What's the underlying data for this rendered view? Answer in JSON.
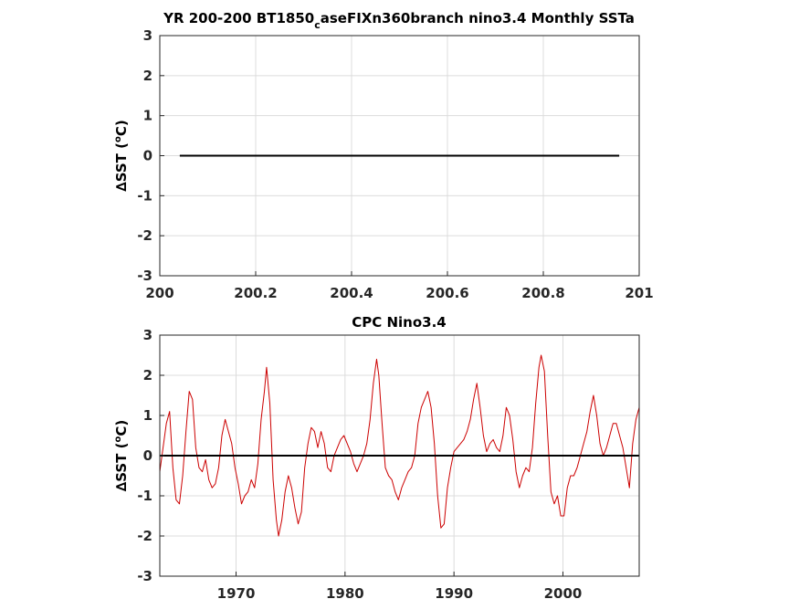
{
  "chart_data": [
    {
      "type": "line",
      "title_main": "YR 200-200 BT1850",
      "title_sub": "c",
      "title_rest": "aseFIXn360branch nino3.4 Monthly SSTa",
      "ylabel_delta": "∆",
      "ylabel_text": "SST (",
      "ylabel_deg": "o",
      "ylabel_unit": "C)",
      "xlim": [
        200,
        201
      ],
      "ylim": [
        -3,
        3
      ],
      "xticks": [
        "200",
        "200.2",
        "200.4",
        "200.6",
        "200.8",
        "201"
      ],
      "yticks": [
        "3",
        "2",
        "1",
        "0",
        "-1",
        "-2",
        "-3"
      ],
      "grid": true,
      "series": [
        {
          "color": "#000000",
          "x": [
            200.0417,
            200.9583
          ],
          "y": [
            0,
            0
          ]
        }
      ]
    },
    {
      "type": "line",
      "title": "CPC Nino3.4",
      "ylabel_delta": "∆",
      "ylabel_text": "SST (",
      "ylabel_deg": "o",
      "ylabel_unit": "C)",
      "xlim": [
        1963,
        2007
      ],
      "ylim": [
        -3,
        3
      ],
      "xticks": [
        "1970",
        "1980",
        "1990",
        "2000"
      ],
      "yticks": [
        "3",
        "2",
        "1",
        "0",
        "-1",
        "-2",
        "-3"
      ],
      "grid": true,
      "zero_line_color": "#000000",
      "series": [
        {
          "color": "#cc0000",
          "x": [
            1963.0,
            1963.3,
            1963.6,
            1963.9,
            1964.2,
            1964.5,
            1964.8,
            1965.1,
            1965.4,
            1965.7,
            1966.0,
            1966.3,
            1966.6,
            1966.9,
            1967.2,
            1967.5,
            1967.8,
            1968.1,
            1968.4,
            1968.7,
            1969.0,
            1969.3,
            1969.6,
            1969.9,
            1970.2,
            1970.5,
            1970.8,
            1971.1,
            1971.4,
            1971.7,
            1972.0,
            1972.3,
            1972.6,
            1972.8,
            1973.1,
            1973.4,
            1973.7,
            1973.9,
            1974.2,
            1974.5,
            1974.8,
            1975.1,
            1975.4,
            1975.7,
            1976.0,
            1976.3,
            1976.6,
            1976.9,
            1977.2,
            1977.5,
            1977.8,
            1978.1,
            1978.4,
            1978.7,
            1979.0,
            1979.3,
            1979.6,
            1979.9,
            1980.2,
            1980.5,
            1980.8,
            1981.1,
            1981.4,
            1981.7,
            1982.0,
            1982.3,
            1982.6,
            1982.9,
            1983.1,
            1983.4,
            1983.7,
            1984.0,
            1984.3,
            1984.6,
            1984.9,
            1985.2,
            1985.5,
            1985.8,
            1986.1,
            1986.4,
            1986.7,
            1987.0,
            1987.3,
            1987.6,
            1987.9,
            1988.2,
            1988.5,
            1988.8,
            1989.1,
            1989.4,
            1989.7,
            1990.0,
            1990.3,
            1990.6,
            1990.9,
            1991.2,
            1991.5,
            1991.8,
            1992.1,
            1992.4,
            1992.7,
            1993.0,
            1993.3,
            1993.6,
            1993.9,
            1994.2,
            1994.5,
            1994.8,
            1995.1,
            1995.4,
            1995.7,
            1996.0,
            1996.3,
            1996.6,
            1996.9,
            1997.2,
            1997.5,
            1997.8,
            1998.0,
            1998.3,
            1998.6,
            1998.9,
            1999.2,
            1999.5,
            1999.8,
            2000.1,
            2000.4,
            2000.7,
            2001.0,
            2001.3,
            2001.6,
            2001.9,
            2002.2,
            2002.5,
            2002.8,
            2003.1,
            2003.4,
            2003.7,
            2004.0,
            2004.3,
            2004.6,
            2004.9,
            2005.2,
            2005.5,
            2005.8,
            2006.1,
            2006.4,
            2006.7,
            2007.0
          ],
          "y": [
            -0.4,
            0.2,
            0.8,
            1.1,
            -0.3,
            -1.1,
            -1.2,
            -0.5,
            0.6,
            1.6,
            1.4,
            0.2,
            -0.3,
            -0.4,
            -0.1,
            -0.6,
            -0.8,
            -0.7,
            -0.3,
            0.5,
            0.9,
            0.6,
            0.3,
            -0.3,
            -0.7,
            -1.2,
            -1.0,
            -0.9,
            -0.6,
            -0.8,
            -0.2,
            0.9,
            1.6,
            2.2,
            1.3,
            -0.6,
            -1.6,
            -2.0,
            -1.6,
            -0.9,
            -0.5,
            -0.8,
            -1.3,
            -1.7,
            -1.4,
            -0.3,
            0.3,
            0.7,
            0.6,
            0.2,
            0.6,
            0.3,
            -0.3,
            -0.4,
            0.0,
            0.2,
            0.4,
            0.5,
            0.3,
            0.1,
            -0.2,
            -0.4,
            -0.2,
            0.0,
            0.3,
            0.9,
            1.8,
            2.4,
            2.0,
            0.8,
            -0.3,
            -0.5,
            -0.6,
            -0.9,
            -1.1,
            -0.8,
            -0.6,
            -0.4,
            -0.3,
            0.0,
            0.8,
            1.2,
            1.4,
            1.6,
            1.2,
            0.3,
            -1.0,
            -1.8,
            -1.7,
            -0.8,
            -0.3,
            0.1,
            0.2,
            0.3,
            0.4,
            0.6,
            0.9,
            1.4,
            1.8,
            1.2,
            0.5,
            0.1,
            0.3,
            0.4,
            0.2,
            0.1,
            0.5,
            1.2,
            1.0,
            0.4,
            -0.4,
            -0.8,
            -0.5,
            -0.3,
            -0.4,
            0.2,
            1.3,
            2.2,
            2.5,
            2.1,
            0.5,
            -0.9,
            -1.2,
            -1.0,
            -1.5,
            -1.5,
            -0.8,
            -0.5,
            -0.5,
            -0.3,
            0.0,
            0.3,
            0.6,
            1.1,
            1.5,
            1.0,
            0.3,
            0.0,
            0.2,
            0.5,
            0.8,
            0.8,
            0.5,
            0.2,
            -0.3,
            -0.8,
            0.3,
            0.9,
            1.2
          ]
        }
      ]
    }
  ]
}
